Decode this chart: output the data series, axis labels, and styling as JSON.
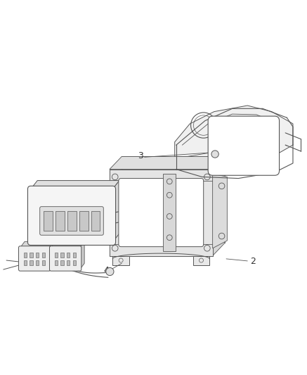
{
  "background_color": "#ffffff",
  "line_color": "#555555",
  "line_color_dark": "#333333",
  "figsize": [
    4.37,
    5.33
  ],
  "dpi": 100,
  "label_fontsize": 9,
  "label_color": "#333333"
}
